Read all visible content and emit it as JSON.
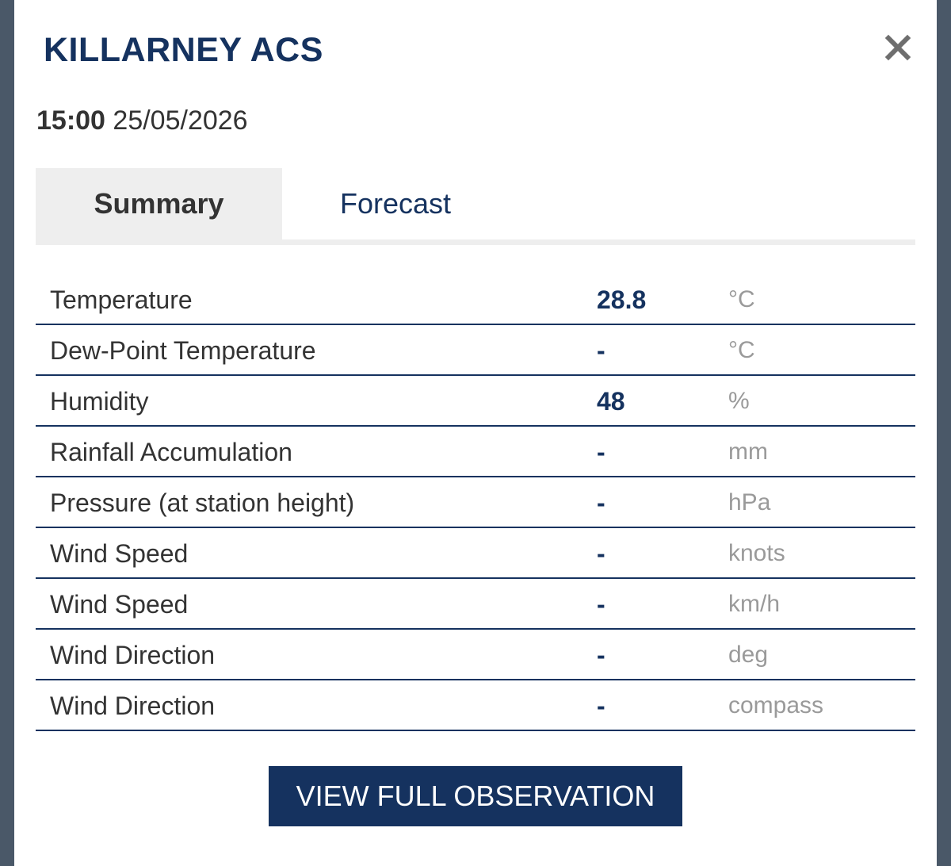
{
  "station": {
    "name": "KILLARNEY ACS",
    "time": "15:00",
    "date": "25/05/2026"
  },
  "close_icon": "close-icon",
  "tabs": [
    {
      "label": "Summary",
      "active": true
    },
    {
      "label": "Forecast",
      "active": false
    }
  ],
  "observations": [
    {
      "label": "Temperature",
      "value": "28.8",
      "unit": "°C"
    },
    {
      "label": "Dew-Point Temperature",
      "value": "-",
      "unit": "°C"
    },
    {
      "label": "Humidity",
      "value": "48",
      "unit": "%"
    },
    {
      "label": "Rainfall Accumulation",
      "value": "-",
      "unit": "mm"
    },
    {
      "label": "Pressure (at station height)",
      "value": "-",
      "unit": "hPa"
    },
    {
      "label": "Wind Speed",
      "value": "-",
      "unit": "knots"
    },
    {
      "label": "Wind Speed",
      "value": "-",
      "unit": "km/h"
    },
    {
      "label": "Wind Direction",
      "value": "-",
      "unit": "deg"
    },
    {
      "label": "Wind Direction",
      "value": "-",
      "unit": "compass"
    }
  ],
  "actions": {
    "view_full_label": "VIEW FULL OBSERVATION"
  },
  "colors": {
    "brand_navy": "#15325f",
    "backdrop": "#4a5868",
    "tab_active_bg": "#eeeeee",
    "unit_gray": "#9a9a9a"
  }
}
